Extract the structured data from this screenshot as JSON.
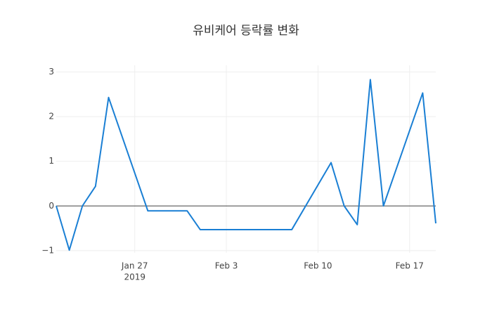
{
  "chart_data": {
    "type": "line",
    "title": "유비케어 등락률 변화",
    "x": [
      "2019-01-21",
      "2019-01-22",
      "2019-01-23",
      "2019-01-24",
      "2019-01-25",
      "2019-01-28",
      "2019-01-29",
      "2019-01-30",
      "2019-01-31",
      "2019-02-01",
      "2019-02-08",
      "2019-02-11",
      "2019-02-12",
      "2019-02-13",
      "2019-02-14",
      "2019-02-15",
      "2019-02-18",
      "2019-02-19"
    ],
    "values": [
      0,
      -0.99,
      0,
      0.44,
      2.43,
      -0.11,
      -0.11,
      -0.11,
      -0.11,
      -0.53,
      -0.53,
      0.97,
      0,
      -0.42,
      2.83,
      0,
      2.53,
      -0.39
    ],
    "color": "#1a7fd4",
    "xlim": [
      "2019-01-21",
      "2019-02-19"
    ],
    "xticks": [
      {
        "value": "2019-01-27",
        "label": "Jan 27"
      },
      {
        "value": "2019-02-03",
        "label": "Feb 3"
      },
      {
        "value": "2019-02-10",
        "label": "Feb 10"
      },
      {
        "value": "2019-02-17",
        "label": "Feb 17"
      }
    ],
    "x_year_label": "2019",
    "ylim": [
      -1.05,
      3.15
    ],
    "yticks": [
      {
        "value": -1,
        "label": "−1"
      },
      0,
      1,
      2,
      3
    ],
    "grid": true
  }
}
